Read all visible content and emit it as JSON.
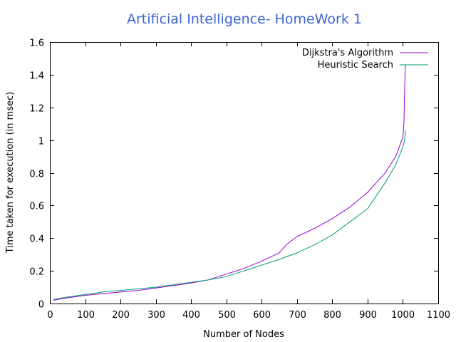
{
  "chart_data": {
    "type": "line",
    "title": "Artificial Intelligence- HomeWork 1",
    "xlabel": "Number of Nodes",
    "ylabel": "Time taken for execution (in msec)",
    "xlim": [
      0,
      1100
    ],
    "ylim": [
      0,
      1.6
    ],
    "x_ticks": [
      "0",
      "100",
      "200",
      "300",
      "400",
      "500",
      "600",
      "700",
      "800",
      "900",
      "1000",
      "1100"
    ],
    "y_ticks": [
      "0",
      "0.2",
      "0.4",
      "0.6",
      "0.8",
      "1",
      "1.2",
      "1.4",
      "1.6"
    ],
    "grid": false,
    "legend_position": "top-right",
    "title_color": "#3c64d2",
    "series": [
      {
        "name": "Dijkstra's Algorithm",
        "color": "#9400d3",
        "x": [
          10,
          50,
          100,
          150,
          200,
          250,
          300,
          350,
          400,
          450,
          500,
          550,
          600,
          650,
          670,
          700,
          750,
          800,
          850,
          900,
          950,
          980,
          1000,
          1003,
          1005,
          1007
        ],
        "y": [
          0.02,
          0.035,
          0.05,
          0.06,
          0.07,
          0.08,
          0.095,
          0.11,
          0.125,
          0.145,
          0.18,
          0.215,
          0.26,
          0.31,
          0.36,
          0.41,
          0.46,
          0.52,
          0.59,
          0.68,
          0.8,
          0.9,
          1.02,
          1.1,
          1.3,
          1.46
        ]
      },
      {
        "name": "Heuristic Search",
        "color": "#009e73",
        "x": [
          10,
          50,
          100,
          150,
          200,
          250,
          300,
          350,
          400,
          450,
          500,
          550,
          600,
          650,
          700,
          750,
          800,
          850,
          900,
          950,
          980,
          1000,
          1005,
          1007
        ],
        "y": [
          0.025,
          0.04,
          0.055,
          0.07,
          0.08,
          0.09,
          0.1,
          0.115,
          0.13,
          0.145,
          0.165,
          0.2,
          0.235,
          0.27,
          0.31,
          0.36,
          0.42,
          0.5,
          0.58,
          0.74,
          0.85,
          0.96,
          1.0,
          1.06
        ]
      }
    ]
  }
}
